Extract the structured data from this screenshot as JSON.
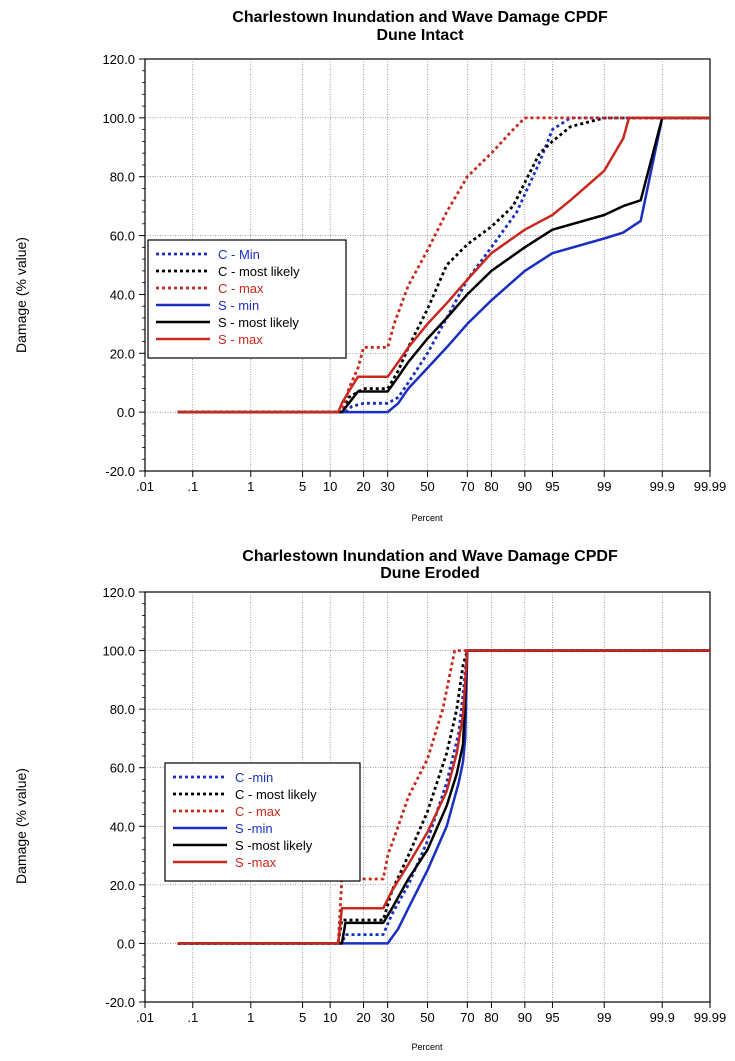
{
  "chart_data": [
    {
      "type": "line",
      "title": "Charlestown Inundation and Wave Damage CPDF",
      "subtitle": "Dune Intact",
      "xlabel": "Percent",
      "ylabel": "Damage (% value)",
      "x_scale": "probability",
      "x_ticks": [
        ".01",
        ".1",
        "1",
        "5",
        "10",
        "20",
        "30",
        "50",
        "70",
        "80",
        "90",
        "95",
        "99",
        "99.9",
        "99.99"
      ],
      "y_ticks": [
        "-20.0",
        "0.0",
        "20.0",
        "40.0",
        "60.0",
        "80.0",
        "100.0",
        "120.0"
      ],
      "ylim": [
        -20,
        120
      ],
      "grid": true,
      "legend_position": "left",
      "series": [
        {
          "name": "C - Min",
          "color": "#1a2fbf",
          "style": "dotted",
          "x": [
            0.05,
            14,
            16,
            20,
            30,
            35,
            40,
            50,
            60,
            70,
            80,
            88,
            90,
            93,
            95,
            97,
            99.9,
            99.99
          ],
          "y": [
            0,
            0,
            2,
            3,
            3,
            5,
            10,
            20,
            32,
            45,
            56,
            68,
            74,
            85,
            96,
            100,
            100,
            100
          ]
        },
        {
          "name": "C - most likely",
          "color": "#000000",
          "style": "dotted",
          "x": [
            0.05,
            13,
            15,
            20,
            30,
            35,
            40,
            50,
            60,
            70,
            80,
            87,
            90,
            93,
            95,
            97,
            99,
            99.9,
            99.99
          ],
          "y": [
            0,
            0,
            5,
            8,
            8,
            14,
            22,
            35,
            50,
            57,
            63,
            70,
            78,
            88,
            92,
            97,
            100,
            100,
            100
          ]
        },
        {
          "name": "C - max",
          "color": "#c8281e",
          "style": "dotted",
          "x": [
            0.05,
            13,
            15,
            18,
            20,
            30,
            33,
            40,
            50,
            60,
            70,
            80,
            87,
            90,
            99.99
          ],
          "y": [
            0,
            0,
            8,
            15,
            22,
            22,
            30,
            43,
            55,
            68,
            80,
            88,
            96,
            100,
            100
          ]
        },
        {
          "name": "S - min",
          "color": "#1a2fbf",
          "style": "solid",
          "x": [
            0.05,
            15,
            18,
            30,
            35,
            40,
            50,
            60,
            70,
            80,
            90,
            95,
            99,
            99.5,
            99.75,
            99.9,
            99.99
          ],
          "y": [
            0,
            0,
            0,
            0,
            3,
            8,
            15,
            22,
            30,
            38,
            48,
            54,
            59,
            61,
            65,
            100,
            100
          ]
        },
        {
          "name": "S - most likely",
          "color": "#000000",
          "style": "solid",
          "x": [
            0.05,
            13,
            15,
            18,
            30,
            35,
            40,
            50,
            60,
            70,
            80,
            90,
            95,
            99,
            99.5,
            99.75,
            99.9,
            99.99
          ],
          "y": [
            0,
            0,
            3,
            7,
            7,
            12,
            17,
            25,
            32,
            40,
            48,
            56,
            62,
            67,
            70,
            72,
            100,
            100
          ]
        },
        {
          "name": "S - max",
          "color": "#c8281e",
          "style": "solid",
          "x": [
            0.05,
            12,
            13,
            15,
            18,
            30,
            35,
            40,
            50,
            60,
            70,
            80,
            90,
            95,
            97,
            99,
            99.5,
            99.6,
            99.99
          ],
          "y": [
            0,
            0,
            3,
            7,
            12,
            12,
            17,
            22,
            30,
            37,
            45,
            54,
            62,
            67,
            72,
            82,
            93,
            100,
            100
          ]
        }
      ]
    },
    {
      "type": "line",
      "title": "Charlestown Inundation and Wave Damage  CPDF",
      "subtitle": "Dune Eroded",
      "xlabel": "Percent",
      "ylabel": "Damage (% value)",
      "x_scale": "probability",
      "x_ticks": [
        ".01",
        ".1",
        "1",
        "5",
        "10",
        "20",
        "30",
        "50",
        "70",
        "80",
        "90",
        "95",
        "99",
        "99.9",
        "99.99"
      ],
      "y_ticks": [
        "-20.0",
        "0.0",
        "20.0",
        "40.0",
        "60.0",
        "80.0",
        "100.0",
        "120.0"
      ],
      "ylim": [
        -20,
        120
      ],
      "grid": true,
      "legend_position": "left",
      "series": [
        {
          "name": "C -min",
          "color": "#1a2fbf",
          "style": "dotted",
          "x": [
            0.05,
            13,
            14,
            28,
            32,
            40,
            50,
            60,
            66,
            68,
            70,
            99.99
          ],
          "y": [
            0,
            0,
            3,
            3,
            10,
            20,
            35,
            55,
            72,
            85,
            100,
            100
          ]
        },
        {
          "name": "C - most likely",
          "color": "#000000",
          "style": "dotted",
          "x": [
            0.05,
            12,
            13,
            28,
            32,
            40,
            50,
            60,
            65,
            68,
            70,
            99.99
          ],
          "y": [
            0,
            0,
            8,
            8,
            18,
            30,
            45,
            65,
            80,
            95,
            100,
            100
          ]
        },
        {
          "name": "C - max",
          "color": "#c8281e",
          "style": "dotted",
          "x": [
            0.05,
            12,
            13,
            28,
            30,
            35,
            40,
            50,
            58,
            64,
            70,
            99.99
          ],
          "y": [
            0,
            0,
            22,
            22,
            30,
            40,
            50,
            63,
            80,
            100,
            100,
            100
          ]
        },
        {
          "name": "S -min",
          "color": "#1a2fbf",
          "style": "solid",
          "x": [
            0.05,
            14,
            30,
            35,
            40,
            50,
            60,
            66,
            68,
            69,
            70,
            99.99
          ],
          "y": [
            0,
            0,
            0,
            5,
            12,
            25,
            40,
            55,
            62,
            70,
            100,
            100
          ]
        },
        {
          "name": "S -most likely",
          "color": "#000000",
          "style": "solid",
          "x": [
            0.05,
            13,
            14,
            28,
            32,
            40,
            50,
            60,
            65,
            68,
            70,
            99.99
          ],
          "y": [
            0,
            0,
            7,
            7,
            12,
            22,
            32,
            47,
            58,
            68,
            100,
            100
          ]
        },
        {
          "name": "S -max",
          "color": "#c8281e",
          "style": "solid",
          "x": [
            0.05,
            12,
            13,
            28,
            32,
            40,
            50,
            60,
            65,
            68,
            70,
            99.99
          ],
          "y": [
            0,
            0,
            12,
            12,
            18,
            27,
            38,
            52,
            65,
            78,
            100,
            100
          ]
        }
      ]
    }
  ]
}
